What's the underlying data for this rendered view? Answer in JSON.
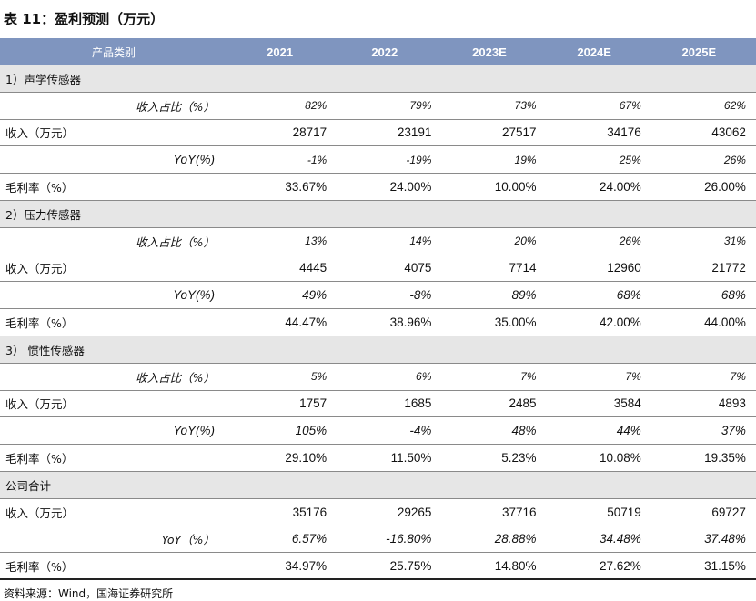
{
  "caption": "表 11：盈利预测（万元）",
  "header": [
    "产品类别",
    "2021",
    "2022",
    "2023E",
    "2024E",
    "2025E"
  ],
  "blocks": [
    {
      "title": "1）声学传感器",
      "ratio": {
        "label": "收入占比（%）",
        "values": [
          "82%",
          "79%",
          "73%",
          "67%",
          "62%"
        ]
      },
      "revenue": {
        "label": "收入（万元）",
        "values": [
          "28717",
          "23191",
          "27517",
          "34176",
          "43062"
        ]
      },
      "yoy": {
        "label": "YoY(%)",
        "values": [
          "-1%",
          "-19%",
          "19%",
          "25%",
          "26%"
        ]
      },
      "margin": {
        "label": "毛利率（%）",
        "values": [
          "33.67%",
          "24.00%",
          "10.00%",
          "24.00%",
          "26.00%"
        ]
      }
    },
    {
      "title": "2）压力传感器",
      "ratio": {
        "label": "收入占比（%）",
        "values": [
          "13%",
          "14%",
          "20%",
          "26%",
          "31%"
        ]
      },
      "revenue": {
        "label": "收入（万元）",
        "values": [
          "4445",
          "4075",
          "7714",
          "12960",
          "21772"
        ]
      },
      "yoy": {
        "label": "YoY(%)",
        "values": [
          "49%",
          "-8%",
          "89%",
          "68%",
          "68%"
        ]
      },
      "margin": {
        "label": "毛利率（%）",
        "values": [
          "44.47%",
          "38.96%",
          "35.00%",
          "42.00%",
          "44.00%"
        ]
      }
    },
    {
      "title": "3） 惯性传感器",
      "ratio": {
        "label": "收入占比（%）",
        "values": [
          "5%",
          "6%",
          "7%",
          "7%",
          "7%"
        ]
      },
      "revenue": {
        "label": "收入（万元）",
        "values": [
          "1757",
          "1685",
          "2485",
          "3584",
          "4893"
        ]
      },
      "yoy": {
        "label": "YoY(%)",
        "values": [
          "105%",
          "-4%",
          "48%",
          "44%",
          "37%"
        ]
      },
      "margin": {
        "label": "毛利率（%）",
        "values": [
          "29.10%",
          "11.50%",
          "5.23%",
          "10.08%",
          "19.35%"
        ]
      }
    }
  ],
  "total": {
    "title": "公司合计",
    "revenue": {
      "label": "收入（万元）",
      "values": [
        "35176",
        "29265",
        "37716",
        "50719",
        "69727"
      ]
    },
    "yoy": {
      "label": "YoY（%）",
      "values": [
        "6.57%",
        "-16.80%",
        "28.88%",
        "34.48%",
        "37.48%"
      ]
    },
    "margin": {
      "label": "毛利率（%）",
      "values": [
        "34.97%",
        "25.75%",
        "14.80%",
        "27.62%",
        "31.15%"
      ]
    }
  },
  "source": "资料来源：Wind，国海证券研究所",
  "colors": {
    "header_bg": "#7f95bf",
    "section_bg": "#e6e6e6"
  }
}
